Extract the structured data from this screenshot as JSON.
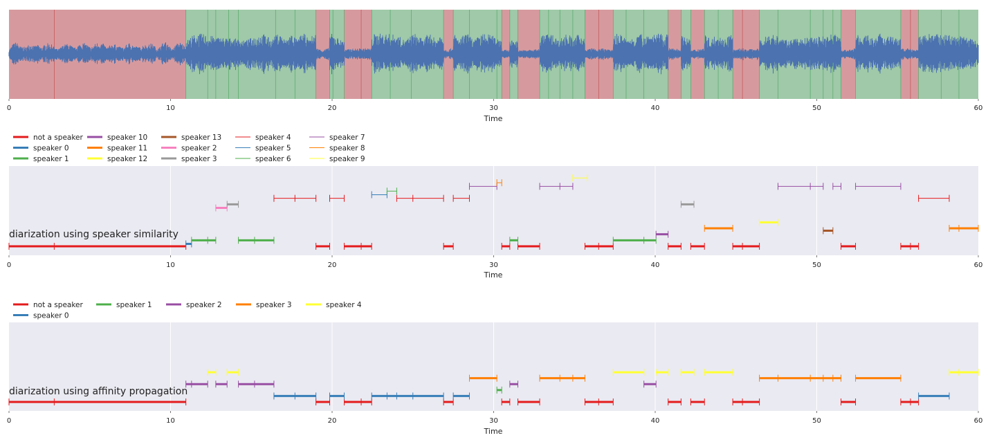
{
  "chart_data": [
    {
      "type": "waveform",
      "xlabel": "Time",
      "xlim": [
        0,
        60
      ],
      "xticks": [
        0,
        10,
        20,
        30,
        40,
        50,
        60
      ],
      "grid": true,
      "waveform_color": "#4c72b0",
      "region_colors": {
        "non_speech": "#d69a9e",
        "speech": "#9fc9a8"
      },
      "non_speech_regions": [
        [
          0,
          10.95
        ],
        [
          19.0,
          19.85
        ],
        [
          20.75,
          22.45
        ],
        [
          26.9,
          27.5
        ],
        [
          30.5,
          31.0
        ],
        [
          31.5,
          32.85
        ],
        [
          35.65,
          37.4
        ],
        [
          40.8,
          41.6
        ],
        [
          42.2,
          43.05
        ],
        [
          44.8,
          46.45
        ],
        [
          51.5,
          52.4
        ],
        [
          55.2,
          56.3
        ]
      ],
      "region_boundaries": [
        2.8,
        12.3,
        12.8,
        13.6,
        14.2,
        16.5,
        17.7,
        20.05,
        21.8,
        23.6,
        24.9,
        28.5,
        30.2,
        33.4,
        34.1,
        34.9,
        36.5,
        38.2,
        39.3,
        43.9,
        45.4,
        47.6,
        49.6,
        50.4,
        51.0,
        55.8,
        57.7,
        58.8
      ]
    },
    {
      "type": "segments",
      "title": "diarization using speaker similarity",
      "xlabel": "Time",
      "xlim": [
        0,
        60
      ],
      "xticks": [
        0,
        10,
        20,
        30,
        40,
        50,
        60
      ],
      "legend": [
        {
          "label": "not a speaker",
          "color": "#e41a1c",
          "thick": true
        },
        {
          "label": "speaker 0",
          "color": "#377eb8",
          "thick": true
        },
        {
          "label": "speaker 1",
          "color": "#4daf4a",
          "thick": true
        },
        {
          "label": "speaker 10",
          "color": "#984ea3",
          "thick": true
        },
        {
          "label": "speaker 11",
          "color": "#ff7f00",
          "thick": true
        },
        {
          "label": "speaker 12",
          "color": "#ffff33",
          "thick": true
        },
        {
          "label": "speaker 13",
          "color": "#a65628",
          "thick": true
        },
        {
          "label": "speaker 2",
          "color": "#f781bf",
          "thick": true
        },
        {
          "label": "speaker 3",
          "color": "#999999",
          "thick": true
        },
        {
          "label": "speaker 4",
          "color": "#e41a1c",
          "thick": false
        },
        {
          "label": "speaker 5",
          "color": "#377eb8",
          "thick": false
        },
        {
          "label": "speaker 6",
          "color": "#4daf4a",
          "thick": false
        },
        {
          "label": "speaker 7",
          "color": "#984ea3",
          "thick": false
        },
        {
          "label": "speaker 8",
          "color": "#ff7f00",
          "thick": false
        },
        {
          "label": "speaker 9",
          "color": "#ffff33",
          "thick": false
        }
      ],
      "series": [
        {
          "name": "not a speaker",
          "color": "#e41a1c",
          "thick": true,
          "level": 0,
          "segments": [
            [
              0,
              2.8,
              10.95
            ],
            [
              19.0,
              19.85
            ],
            [
              20.75,
              21.8,
              22.45
            ],
            [
              26.9,
              27.5
            ],
            [
              30.5,
              31.0
            ],
            [
              31.5,
              32.85
            ],
            [
              35.65,
              36.5,
              37.4
            ],
            [
              40.8,
              41.6
            ],
            [
              42.2,
              43.05
            ],
            [
              44.8,
              45.4,
              46.45
            ],
            [
              51.5,
              52.4
            ],
            [
              55.2,
              55.8,
              56.3
            ]
          ]
        },
        {
          "name": "speaker 0",
          "color": "#377eb8",
          "thick": true,
          "level": 0.4,
          "segments": [
            [
              10.95,
              11.3
            ]
          ]
        },
        {
          "name": "speaker 1",
          "color": "#4daf4a",
          "thick": true,
          "level": 1,
          "segments": [
            [
              11.3,
              12.3,
              12.8
            ],
            [
              14.2,
              15.2,
              16.4
            ],
            [
              31.0,
              31.5
            ],
            [
              37.4,
              39.3,
              40.05
            ]
          ]
        },
        {
          "name": "speaker 10",
          "color": "#984ea3",
          "thick": true,
          "level": 2,
          "segments": [
            [
              40.05,
              40.8
            ]
          ]
        },
        {
          "name": "speaker 11",
          "color": "#ff7f00",
          "thick": true,
          "level": 3,
          "segments": [
            [
              43.05,
              44.8
            ],
            [
              58.2,
              58.8,
              60
            ]
          ]
        },
        {
          "name": "speaker 12",
          "color": "#ffff33",
          "thick": true,
          "level": 4,
          "segments": [
            [
              46.45,
              47.6
            ]
          ]
        },
        {
          "name": "speaker 13",
          "color": "#a65628",
          "thick": true,
          "level": 2.6,
          "segments": [
            [
              50.4,
              51.0
            ]
          ]
        },
        {
          "name": "speaker 2",
          "color": "#f781bf",
          "thick": true,
          "level": 6.4,
          "segments": [
            [
              12.8,
              13.5
            ]
          ]
        },
        {
          "name": "speaker 3",
          "color": "#999999",
          "thick": true,
          "level": 7,
          "segments": [
            [
              13.5,
              14.2
            ],
            [
              41.6,
              42.4
            ]
          ]
        },
        {
          "name": "speaker 4",
          "color": "#e41a1c",
          "thick": false,
          "level": 8,
          "segments": [
            [
              16.4,
              17.7,
              19.0
            ],
            [
              19.85,
              20.75
            ],
            [
              24.0,
              25.0,
              26.9
            ],
            [
              27.5,
              28.5
            ],
            [
              56.3,
              58.2
            ]
          ]
        },
        {
          "name": "speaker 5",
          "color": "#377eb8",
          "thick": false,
          "level": 8.6,
          "segments": [
            [
              22.45,
              23.4
            ]
          ]
        },
        {
          "name": "speaker 6",
          "color": "#4daf4a",
          "thick": false,
          "level": 9.2,
          "segments": [
            [
              23.4,
              24.0
            ]
          ]
        },
        {
          "name": "speaker 7",
          "color": "#984ea3",
          "thick": false,
          "level": 10,
          "segments": [
            [
              28.5,
              30.2
            ],
            [
              32.85,
              34.1,
              34.9
            ],
            [
              47.6,
              49.6,
              50.4
            ],
            [
              51.0,
              51.5
            ],
            [
              52.4,
              55.2
            ]
          ]
        },
        {
          "name": "speaker 8",
          "color": "#ff7f00",
          "thick": false,
          "level": 10.6,
          "segments": [
            [
              30.2,
              30.5
            ]
          ]
        },
        {
          "name": "speaker 9",
          "color": "#ffff33",
          "thick": false,
          "level": 11.4,
          "segments": [
            [
              34.9,
              35.8
            ]
          ]
        }
      ]
    },
    {
      "type": "segments",
      "title": "diarization using affinity propagation",
      "xlabel": "Time",
      "xlim": [
        0,
        60
      ],
      "xticks": [
        0,
        10,
        20,
        30,
        40,
        50,
        60
      ],
      "legend": [
        {
          "label": "not a speaker",
          "color": "#e41a1c",
          "thick": true
        },
        {
          "label": "speaker 0",
          "color": "#377eb8",
          "thick": true
        },
        {
          "label": "speaker 1",
          "color": "#4daf4a",
          "thick": true
        },
        {
          "label": "speaker 2",
          "color": "#984ea3",
          "thick": true
        },
        {
          "label": "speaker 3",
          "color": "#ff7f00",
          "thick": true
        },
        {
          "label": "speaker 4",
          "color": "#ffff33",
          "thick": true
        }
      ],
      "series": [
        {
          "name": "not a speaker",
          "color": "#e41a1c",
          "thick": true,
          "level": 0,
          "segments": [
            [
              0,
              2.8,
              10.95
            ],
            [
              19.0,
              19.85
            ],
            [
              20.75,
              21.8,
              22.45
            ],
            [
              26.9,
              27.5
            ],
            [
              30.5,
              31.0
            ],
            [
              31.5,
              32.85
            ],
            [
              35.65,
              36.5,
              37.4
            ],
            [
              40.8,
              41.6
            ],
            [
              42.2,
              43.05
            ],
            [
              44.8,
              45.4,
              46.45
            ],
            [
              51.5,
              52.4
            ],
            [
              55.2,
              55.8,
              56.3
            ]
          ]
        },
        {
          "name": "speaker 0",
          "color": "#377eb8",
          "thick": true,
          "level": 1,
          "segments": [
            [
              16.4,
              17.7,
              19.0
            ],
            [
              19.85,
              20.75
            ],
            [
              22.45,
              23.4,
              24.0,
              25.0,
              26.9
            ],
            [
              27.5,
              28.5
            ],
            [
              56.3,
              58.2
            ]
          ]
        },
        {
          "name": "speaker 1",
          "color": "#4daf4a",
          "thick": true,
          "level": 2,
          "segments": [
            [
              30.2,
              30.5
            ]
          ]
        },
        {
          "name": "speaker 2",
          "color": "#984ea3",
          "thick": true,
          "level": 3,
          "segments": [
            [
              10.95,
              11.3,
              12.3
            ],
            [
              12.8,
              13.5
            ],
            [
              14.2,
              15.2,
              16.4
            ],
            [
              31.0,
              31.5
            ],
            [
              39.3,
              40.05
            ]
          ]
        },
        {
          "name": "speaker 3",
          "color": "#ff7f00",
          "thick": true,
          "level": 4,
          "segments": [
            [
              28.5,
              30.2
            ],
            [
              32.85,
              34.1,
              34.9,
              35.65
            ],
            [
              46.45,
              47.6,
              49.6,
              50.4,
              51.0,
              51.5
            ],
            [
              52.4,
              55.2
            ]
          ]
        },
        {
          "name": "speaker 4",
          "color": "#ffff33",
          "thick": true,
          "level": 5,
          "segments": [
            [
              12.3,
              12.8
            ],
            [
              13.5,
              14.2
            ],
            [
              37.4,
              39.3
            ],
            [
              40.05,
              40.8
            ],
            [
              41.6,
              42.4
            ],
            [
              43.05,
              44.8
            ],
            [
              58.2,
              58.8,
              60
            ]
          ]
        }
      ]
    }
  ]
}
